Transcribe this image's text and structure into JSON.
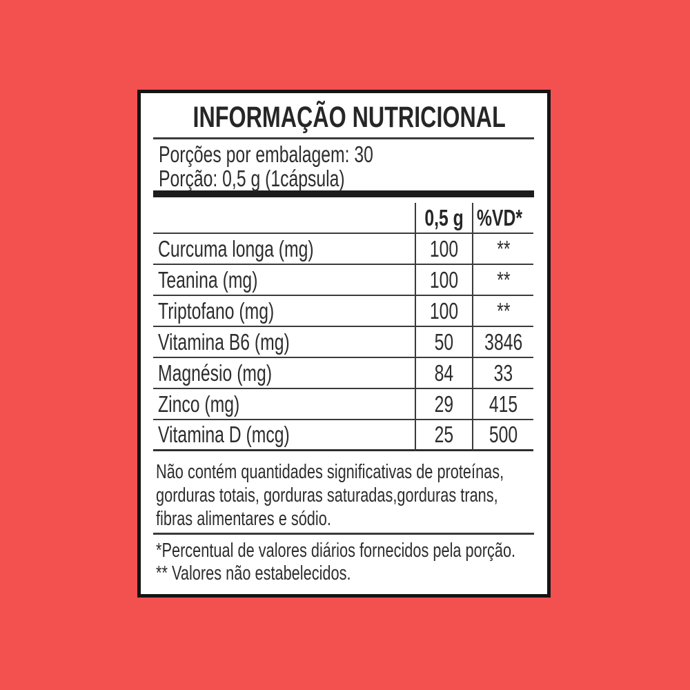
{
  "colors": {
    "background": "#f35150",
    "label_background": "#ffffff",
    "border": "#141414",
    "text": "#2d2d2d",
    "rule": "#3a3a3a"
  },
  "label": {
    "title": "INFORMAÇÃO NUTRICIONAL",
    "servings": {
      "per_package": "Porções por embalagem: 30",
      "size": "Porção: 0,5 g (1cápsula)"
    },
    "table": {
      "col_amount": "0,5 g",
      "col_vd": "%VD*",
      "rows": [
        {
          "name": "Curcuma longa (mg)",
          "amount": "100",
          "vd": "**"
        },
        {
          "name": "Teanina (mg)",
          "amount": "100",
          "vd": "**"
        },
        {
          "name": "Triptofano (mg)",
          "amount": "100",
          "vd": "**"
        },
        {
          "name": "Vitamina B6 (mg)",
          "amount": "50",
          "vd": "3846"
        },
        {
          "name": "Magnésio (mg)",
          "amount": "84",
          "vd": "33"
        },
        {
          "name": "Zinco (mg)",
          "amount": "29",
          "vd": "415"
        },
        {
          "name": "Vitamina D (mcg)",
          "amount": "25",
          "vd": "500"
        }
      ]
    },
    "disclaimer_lines": [
      "Não contém quantidades significativas de proteínas,",
      "gorduras totais, gorduras saturadas,gorduras trans,",
      "fibras alimentares e sódio."
    ],
    "footnotes": [
      "*Percentual de valores diários fornecidos pela porção.",
      "** Valores não estabelecidos."
    ]
  }
}
